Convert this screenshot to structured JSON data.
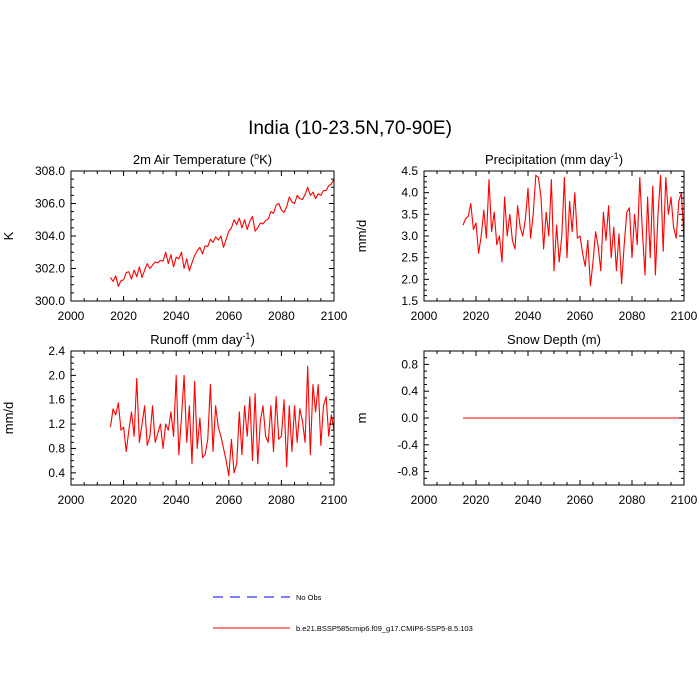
{
  "title": "India (10-23.5N,70-90E)",
  "colors": {
    "model": "#ff0000",
    "obs": "#0000ff",
    "axis": "#000000"
  },
  "legend": [
    {
      "label": "No Obs",
      "style": "dashed",
      "color": "#0000ff"
    },
    {
      "label": "b.e21.BSSP585cmip6.f09_g17.CMIP6-SSP5-8.5.103",
      "style": "solid",
      "color": "#ff0000"
    }
  ],
  "chart_data": [
    {
      "type": "line",
      "title": "2m Air Temperature (°K)",
      "ylabel": "K",
      "xlim": [
        2000,
        2100
      ],
      "ylim": [
        300.0,
        308.0
      ],
      "x_ticks": [
        "2000",
        "2020",
        "2040",
        "2060",
        "2080",
        "2100"
      ],
      "y_ticks": [
        "300.0",
        "302.0",
        "304.0",
        "306.0",
        "308.0"
      ],
      "x_start": 2015,
      "series": [
        {
          "name": "b.e21.BSSP585cmip6.f09_g17.CMIP6-SSP5-8.5.103",
          "values": [
            301.45,
            301.2,
            301.55,
            300.9,
            301.25,
            301.3,
            301.75,
            301.8,
            301.35,
            301.9,
            301.5,
            302.1,
            301.45,
            301.9,
            302.3,
            302.0,
            302.2,
            302.4,
            302.35,
            302.5,
            302.45,
            303.0,
            302.3,
            302.85,
            302.1,
            302.7,
            302.6,
            303.0,
            302.0,
            302.6,
            301.85,
            302.35,
            302.8,
            303.1,
            303.3,
            302.9,
            303.4,
            303.35,
            303.8,
            303.6,
            303.95,
            303.75,
            304.0,
            303.3,
            303.8,
            304.3,
            304.5,
            305.0,
            304.7,
            305.1,
            304.5,
            305.0,
            304.4,
            304.9,
            305.2,
            304.3,
            304.5,
            304.8,
            304.75,
            304.95,
            305.05,
            305.5,
            305.4,
            305.9,
            306.0,
            305.6,
            305.45,
            305.8,
            306.4,
            306.1,
            306.0,
            306.5,
            306.3,
            306.25,
            306.55,
            307.0,
            306.5,
            306.7,
            306.3,
            306.6,
            306.5,
            306.8,
            306.8,
            307.1,
            307.2,
            307.5
          ]
        }
      ]
    },
    {
      "type": "line",
      "title": "Precipitation (mm day-1)",
      "ylabel": "mm/d",
      "xlim": [
        2000,
        2100
      ],
      "ylim": [
        1.5,
        4.5
      ],
      "x_ticks": [
        "2000",
        "2020",
        "2040",
        "2060",
        "2080",
        "2100"
      ],
      "y_ticks": [
        "1.5",
        "2.0",
        "2.5",
        "3.0",
        "3.5",
        "4.0",
        "4.5"
      ],
      "x_start": 2015,
      "series": [
        {
          "name": "b.e21.BSSP585cmip6.f09_g17.CMIP6-SSP5-8.5.103",
          "values": [
            3.25,
            3.4,
            3.45,
            3.75,
            3.15,
            3.3,
            2.6,
            3.0,
            3.6,
            2.95,
            4.3,
            3.1,
            3.55,
            2.8,
            3.0,
            2.4,
            3.9,
            3.0,
            3.5,
            2.9,
            2.7,
            3.7,
            3.2,
            3.0,
            3.4,
            4.1,
            2.95,
            3.5,
            4.4,
            4.35,
            3.9,
            2.7,
            3.55,
            3.0,
            4.3,
            2.2,
            3.25,
            2.4,
            3.0,
            4.35,
            2.5,
            3.8,
            3.1,
            4.0,
            2.95,
            3.0,
            2.6,
            2.3,
            2.9,
            1.85,
            2.4,
            3.1,
            2.75,
            2.2,
            3.55,
            2.9,
            3.7,
            2.5,
            3.2,
            2.2,
            3.05,
            1.9,
            2.8,
            3.55,
            3.65,
            2.5,
            3.5,
            2.8,
            4.35,
            3.1,
            2.1,
            3.9,
            2.5,
            4.15,
            2.1,
            3.5,
            4.4,
            2.65,
            4.35,
            3.5,
            3.9,
            3.2,
            2.95,
            3.8,
            4.0,
            2.9
          ]
        }
      ]
    },
    {
      "type": "line",
      "title": "Runoff (mm day-1)",
      "ylabel": "mm/d",
      "xlim": [
        2000,
        2100
      ],
      "ylim": [
        0.2,
        2.4
      ],
      "x_ticks": [
        "2000",
        "2020",
        "2040",
        "2060",
        "2080",
        "2100"
      ],
      "y_ticks": [
        "0.4",
        "0.8",
        "1.2",
        "1.6",
        "2.0",
        "2.4"
      ],
      "x_start": 2015,
      "series": [
        {
          "name": "b.e21.BSSP585cmip6.f09_g17.CMIP6-SSP5-8.5.103",
          "values": [
            1.15,
            1.45,
            1.35,
            1.55,
            1.1,
            1.15,
            0.75,
            1.1,
            1.4,
            1.0,
            1.95,
            0.9,
            1.2,
            1.5,
            0.85,
            1.0,
            1.5,
            0.9,
            1.05,
            1.2,
            0.8,
            1.2,
            1.1,
            1.4,
            1.0,
            2.0,
            0.7,
            1.3,
            2.0,
            0.9,
            1.5,
            0.55,
            1.9,
            0.8,
            1.3,
            0.65,
            0.7,
            0.95,
            1.85,
            0.75,
            1.5,
            1.15,
            1.0,
            0.8,
            0.6,
            0.35,
            0.95,
            0.4,
            0.55,
            1.4,
            0.7,
            1.5,
            1.0,
            1.65,
            0.6,
            1.7,
            0.55,
            1.25,
            1.5,
            1.0,
            0.9,
            1.5,
            0.75,
            1.65,
            0.95,
            1.0,
            1.6,
            0.5,
            1.5,
            0.75,
            1.5,
            0.9,
            1.45,
            1.25,
            0.9,
            2.15,
            0.7,
            1.85,
            1.4,
            1.85,
            0.85,
            1.5,
            1.65,
            1.0,
            1.35,
            1.1
          ]
        }
      ]
    },
    {
      "type": "line",
      "title": "Snow Depth (m)",
      "ylabel": "m",
      "xlim": [
        2000,
        2100
      ],
      "ylim": [
        -1.0,
        1.0
      ],
      "x_ticks": [
        "2000",
        "2020",
        "2040",
        "2060",
        "2080",
        "2100"
      ],
      "y_ticks": [
        "-0.8",
        "-0.4",
        "0.0",
        "0.4",
        "0.8"
      ],
      "x_start": 2015,
      "series": [
        {
          "name": "b.e21.BSSP585cmip6.f09_g17.CMIP6-SSP5-8.5.103",
          "values": [
            0.0,
            0.0,
            0.0,
            0.0,
            0.0,
            0.0,
            0.0,
            0.0,
            0.0,
            0.0,
            0.0,
            0.0,
            0.0,
            0.0,
            0.0,
            0.0,
            0.0,
            0.0,
            0.0,
            0.0,
            0.0,
            0.0,
            0.0,
            0.0,
            0.0,
            0.0,
            0.0,
            0.0,
            0.0,
            0.0,
            0.0,
            0.0,
            0.0,
            0.0,
            0.0,
            0.0,
            0.0,
            0.0,
            0.0,
            0.0,
            0.0,
            0.0,
            0.0,
            0.0,
            0.0,
            0.0,
            0.0,
            0.0,
            0.0,
            0.0,
            0.0,
            0.0,
            0.0,
            0.0,
            0.0,
            0.0,
            0.0,
            0.0,
            0.0,
            0.0,
            0.0,
            0.0,
            0.0,
            0.0,
            0.0,
            0.0,
            0.0,
            0.0,
            0.0,
            0.0,
            0.0,
            0.0,
            0.0,
            0.0,
            0.0,
            0.0,
            0.0,
            0.0,
            0.0,
            0.0,
            0.0,
            0.0,
            0.0,
            0.0,
            0.0,
            0.0
          ]
        }
      ]
    }
  ]
}
